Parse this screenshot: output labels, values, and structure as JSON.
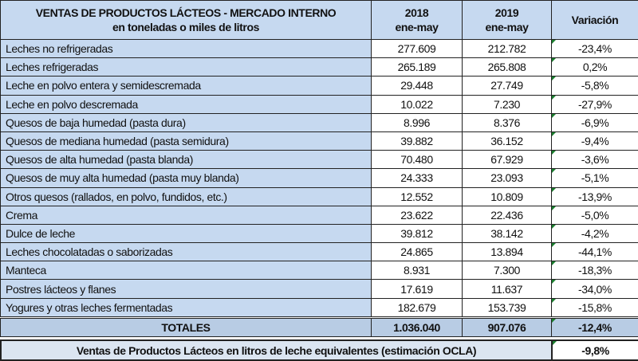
{
  "chart_data": {
    "type": "table",
    "title": "VENTAS DE PRODUCTOS LÁCTEOS - MERCADO INTERNO",
    "subtitle": "en toneladas o miles de litros",
    "columns": [
      {
        "year": "2018",
        "period": "ene-may"
      },
      {
        "year": "2019",
        "period": "ene-may"
      },
      {
        "label": "Variación"
      }
    ],
    "rows": [
      {
        "label": "Leches no refrigeradas",
        "v2018": "277.609",
        "v2019": "212.782",
        "var": "-23,4%"
      },
      {
        "label": "Leches refrigeradas",
        "v2018": "265.189",
        "v2019": "265.808",
        "var": "0,2%"
      },
      {
        "label": "Leche en polvo entera y semidescremada",
        "v2018": "29.448",
        "v2019": "27.749",
        "var": "-5,8%"
      },
      {
        "label": "Leche en polvo descremada",
        "v2018": "10.022",
        "v2019": "7.230",
        "var": "-27,9%"
      },
      {
        "label": "Quesos de baja humedad (pasta dura)",
        "v2018": "8.996",
        "v2019": "8.376",
        "var": "-6,9%"
      },
      {
        "label": "Quesos de mediana humedad (pasta semidura)",
        "v2018": "39.882",
        "v2019": "36.152",
        "var": "-9,4%"
      },
      {
        "label": "Quesos de alta humedad (pasta blanda)",
        "v2018": "70.480",
        "v2019": "67.929",
        "var": "-3,6%"
      },
      {
        "label": "Quesos de muy alta humedad (pasta muy blanda)",
        "v2018": "24.333",
        "v2019": "23.093",
        "var": "-5,1%"
      },
      {
        "label": "Otros quesos (rallados, en polvo, fundidos, etc.)",
        "v2018": "12.552",
        "v2019": "10.809",
        "var": "-13,9%"
      },
      {
        "label": "Crema",
        "v2018": "23.622",
        "v2019": "22.436",
        "var": "-5,0%"
      },
      {
        "label": "Dulce de leche",
        "v2018": "39.812",
        "v2019": "38.142",
        "var": "-4,2%"
      },
      {
        "label": "Leches chocolatadas o saborizadas",
        "v2018": "24.865",
        "v2019": "13.894",
        "var": "-44,1%"
      },
      {
        "label": "Manteca",
        "v2018": "8.931",
        "v2019": "7.300",
        "var": "-18,3%"
      },
      {
        "label": "Postres lácteos y flanes",
        "v2018": "17.619",
        "v2019": "11.637",
        "var": "-34,0%"
      },
      {
        "label": "Yogures y otras leches fermentadas",
        "v2018": "182.679",
        "v2019": "153.739",
        "var": "-15,8%"
      }
    ],
    "totals": {
      "label": "TOTALES",
      "v2018": "1.036.040",
      "v2019": "907.076",
      "var": "-12,4%"
    },
    "footer": {
      "label": "Ventas de Productos Lácteos en litros de leche equivalentes (estimación OCLA)",
      "var": "-9,8%"
    }
  },
  "colors": {
    "header_fill": "#c6d9f0",
    "totals_fill": "#b8cce4",
    "indicator": "#1a7f2e"
  }
}
